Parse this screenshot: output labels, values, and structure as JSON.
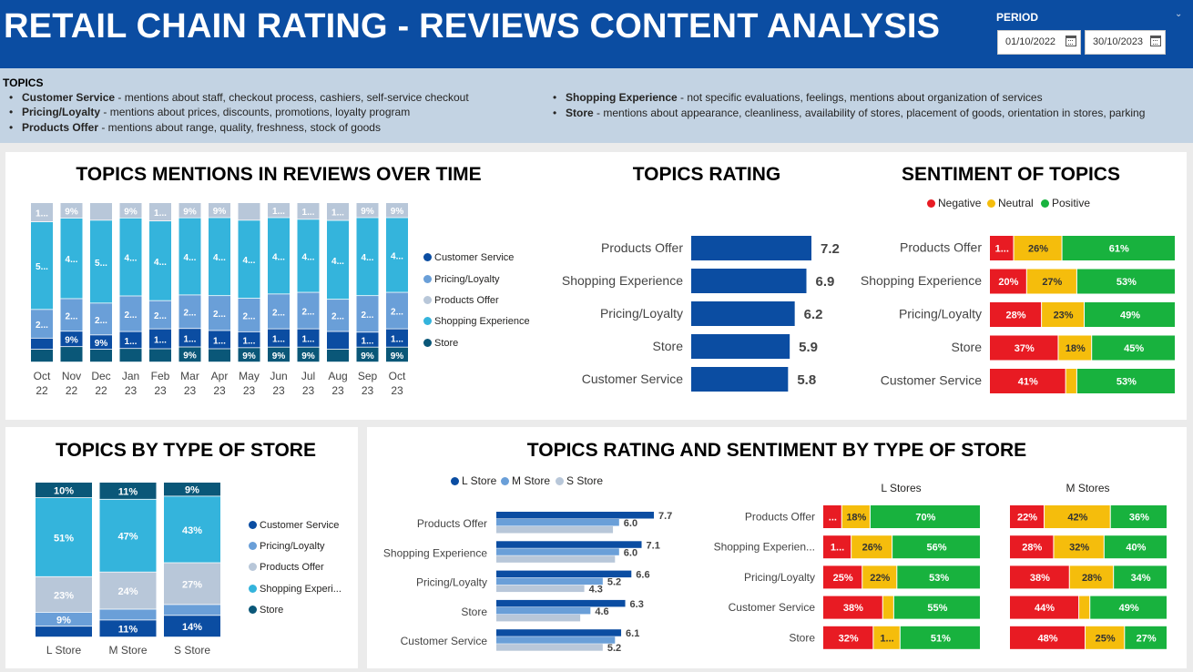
{
  "header": {
    "title": "RETAIL CHAIN RATING - REVIEWS CONTENT ANALYSIS",
    "period_label": "PERIOD",
    "date_from": "01/10/2022",
    "date_to": "30/10/2023"
  },
  "topics": {
    "heading": "TOPICS",
    "left": [
      {
        "name": "Customer Service",
        "desc": " - mentions about staff, checkout process, cashiers, self-service checkout"
      },
      {
        "name": "Pricing/Loyalty",
        "desc": " - mentions about prices, discounts, promotions, loyalty program"
      },
      {
        "name": "Products Offer",
        "desc": " - mentions about range, quality, freshness, stock of goods"
      }
    ],
    "right": [
      {
        "name": "Shopping Experience",
        "desc": " - not specific evaluations, feelings, mentions about organization of services"
      },
      {
        "name": "Store",
        "desc": " - mentions about appearance, cleanliness, availability of stores, placement of goods, orientation in stores, parking"
      }
    ]
  },
  "colors": {
    "customer_service": "#0b4da2",
    "pricing_loyalty": "#6a9fd8",
    "products_offer": "#b8c7d9",
    "shopping_experience": "#34b4dc",
    "store": "#0a5778",
    "negative": "#e81b23",
    "neutral": "#f5bd0c",
    "positive": "#18b23e",
    "l_store": "#0b4da2",
    "m_store": "#6a9fd8",
    "s_store": "#b8c7d9"
  },
  "mentions_chart": {
    "title": "TOPICS MENTIONS IN REVIEWS OVER TIME",
    "legend": [
      "Customer Service",
      "Pricing/Loyalty",
      "Products Offer",
      "Shopping Experience",
      "Store"
    ],
    "chart_data": {
      "type": "bar",
      "stacked": true,
      "normalized": true,
      "categories": [
        "Oct 22",
        "Nov 22",
        "Dec 22",
        "Jan 23",
        "Feb 23",
        "Mar 23",
        "Apr 23",
        "May 23",
        "Jun 23",
        "Jul 23",
        "Aug 23",
        "Sep 23",
        "Oct 23"
      ],
      "series": [
        {
          "name": "Store",
          "values": [
            8,
            9,
            8,
            8,
            8,
            9,
            8,
            9,
            9,
            9,
            8,
            9,
            9
          ],
          "labels": [
            "",
            "",
            "",
            "",
            "",
            "9%",
            "",
            "9%",
            "9%",
            "9%",
            "",
            "9%",
            "9%"
          ]
        },
        {
          "name": "Customer Service",
          "values": [
            7,
            9,
            9,
            10,
            12,
            11,
            11,
            10,
            11,
            11,
            11,
            9,
            11
          ],
          "labels": [
            "",
            "9%",
            "9%",
            "1...",
            "1...",
            "1...",
            "1...",
            "1...",
            "1...",
            "1...",
            "",
            "1...",
            "1..."
          ]
        },
        {
          "name": "Pricing/Loyalty",
          "values": [
            18,
            19,
            20,
            21,
            17,
            20,
            21,
            21,
            21,
            22,
            20,
            22,
            22
          ],
          "labels": [
            "2...",
            "2...",
            "2...",
            "2...",
            "2...",
            "2...",
            "2...",
            "2...",
            "2...",
            "2...",
            "2...",
            "2...",
            "2..."
          ]
        },
        {
          "name": "Shopping Experience",
          "values": [
            55,
            47,
            52,
            46,
            48,
            46,
            47,
            49,
            46,
            44,
            49,
            47,
            45
          ],
          "labels": [
            "5...",
            "4...",
            "5...",
            "4...",
            "4...",
            "4...",
            "4...",
            "4...",
            "4...",
            "4...",
            "4...",
            "4...",
            "4..."
          ]
        },
        {
          "name": "Products Offer",
          "values": [
            12,
            9,
            11,
            9,
            11,
            9,
            9,
            11,
            9,
            10,
            11,
            9,
            9
          ],
          "labels": [
            "1...",
            "9%",
            "",
            "9%",
            "1...",
            "9%",
            "9%",
            "",
            "1...",
            "1...",
            "1...",
            "9%",
            "9%"
          ]
        }
      ]
    }
  },
  "rating_chart": {
    "title": "TOPICS RATING",
    "chart_data": {
      "type": "bar",
      "orientation": "horizontal",
      "categories": [
        "Products Offer",
        "Shopping Experience",
        "Pricing/Loyalty",
        "Store",
        "Customer Service"
      ],
      "values": [
        7.2,
        6.9,
        6.2,
        5.9,
        5.8
      ],
      "value_labels": [
        "7.2",
        "6.9",
        "6.2",
        "5.9",
        "5.8"
      ]
    }
  },
  "sentiment_chart": {
    "title": "SENTIMENT OF TOPICS",
    "legend": [
      "Negative",
      "Neutral",
      "Positive"
    ],
    "chart_data": {
      "type": "bar",
      "orientation": "horizontal",
      "stacked": true,
      "normalized": true,
      "categories": [
        "Products Offer",
        "Shopping Experience",
        "Pricing/Loyalty",
        "Store",
        "Customer Service"
      ],
      "series": [
        {
          "name": "Negative",
          "values": [
            13,
            20,
            28,
            37,
            41
          ],
          "labels": [
            "1...",
            "20%",
            "28%",
            "37%",
            "41%"
          ]
        },
        {
          "name": "Neutral",
          "values": [
            26,
            27,
            23,
            18,
            6
          ],
          "labels": [
            "26%",
            "27%",
            "23%",
            "18%",
            ""
          ]
        },
        {
          "name": "Positive",
          "values": [
            61,
            53,
            49,
            45,
            53
          ],
          "labels": [
            "61%",
            "53%",
            "49%",
            "45%",
            "53%"
          ]
        }
      ]
    }
  },
  "store_type_chart": {
    "title": "TOPICS BY TYPE OF STORE",
    "legend": [
      "Customer Service",
      "Pricing/Loyalty",
      "Products Offer",
      "Shopping Experi...",
      "Store"
    ],
    "chart_data": {
      "type": "bar",
      "stacked": true,
      "normalized": true,
      "categories": [
        "L Store",
        "M Store",
        "S Store"
      ],
      "series": [
        {
          "name": "Customer Service",
          "values": [
            7,
            11,
            14
          ],
          "labels": [
            "",
            "11%",
            "14%"
          ]
        },
        {
          "name": "Pricing/Loyalty",
          "values": [
            9,
            7,
            7
          ],
          "labels": [
            "9%",
            "",
            ""
          ]
        },
        {
          "name": "Products Offer",
          "values": [
            23,
            24,
            27
          ],
          "labels": [
            "23%",
            "24%",
            "27%"
          ]
        },
        {
          "name": "Shopping Experience",
          "values": [
            51,
            47,
            43
          ],
          "labels": [
            "51%",
            "47%",
            "43%"
          ]
        },
        {
          "name": "Store",
          "values": [
            10,
            11,
            9
          ],
          "labels": [
            "10%",
            "11%",
            "9%"
          ]
        }
      ]
    }
  },
  "rating_sentiment_store": {
    "title": "TOPICS RATING AND SENTIMENT BY TYPE OF STORE",
    "legend": [
      "L Store",
      "M Store",
      "S Store"
    ],
    "rating_chart_data": {
      "type": "bar",
      "orientation": "horizontal",
      "categories": [
        "Products Offer",
        "Shopping Experience",
        "Pricing/Loyalty",
        "Store",
        "Customer Service"
      ],
      "series": [
        {
          "name": "L Store",
          "values": [
            7.7,
            7.1,
            6.6,
            6.3,
            6.1
          ],
          "labels": [
            "7.7",
            "7.1",
            "6.6",
            "6.3",
            "6.1"
          ]
        },
        {
          "name": "M Store",
          "values": [
            6.0,
            6.0,
            5.2,
            4.6,
            5.8
          ],
          "labels": [
            "6.0",
            "6.0",
            "5.2",
            "4.6",
            ""
          ]
        },
        {
          "name": "S Store",
          "values": [
            5.7,
            5.8,
            4.3,
            4.1,
            5.2
          ],
          "labels": [
            "",
            "",
            "4.3",
            "",
            "5.2"
          ]
        }
      ]
    },
    "l_stores": {
      "title": "L Stores",
      "chart_data": {
        "type": "bar",
        "orientation": "horizontal",
        "stacked": true,
        "normalized": true,
        "categories": [
          "Products Offer",
          "Shopping Experien...",
          "Pricing/Loyalty",
          "Customer Service",
          "Store"
        ],
        "series": [
          {
            "name": "Negative",
            "values": [
              12,
              18,
              25,
              38,
              32
            ],
            "labels": [
              "...",
              "1...",
              "25%",
              "38%",
              "32%"
            ]
          },
          {
            "name": "Neutral",
            "values": [
              18,
              26,
              22,
              7,
              17
            ],
            "labels": [
              "18%",
              "26%",
              "22%",
              "",
              "1..."
            ]
          },
          {
            "name": "Positive",
            "values": [
              70,
              56,
              53,
              55,
              51
            ],
            "labels": [
              "70%",
              "56%",
              "53%",
              "55%",
              "51%"
            ]
          }
        ]
      }
    },
    "m_stores": {
      "title": "M Stores",
      "chart_data": {
        "type": "bar",
        "orientation": "horizontal",
        "stacked": true,
        "normalized": true,
        "categories": [
          "Products Offer",
          "Shopping Experien...",
          "Pricing/Loyalty",
          "Customer Service",
          "Store"
        ],
        "series": [
          {
            "name": "Negative",
            "values": [
              22,
              28,
              38,
              44,
              48
            ],
            "labels": [
              "22%",
              "28%",
              "38%",
              "44%",
              "48%"
            ]
          },
          {
            "name": "Neutral",
            "values": [
              42,
              32,
              28,
              7,
              25
            ],
            "labels": [
              "42%",
              "32%",
              "28%",
              "",
              "25%"
            ]
          },
          {
            "name": "Positive",
            "values": [
              36,
              40,
              34,
              49,
              27
            ],
            "labels": [
              "36%",
              "40%",
              "34%",
              "49%",
              "27%"
            ]
          }
        ]
      }
    }
  }
}
